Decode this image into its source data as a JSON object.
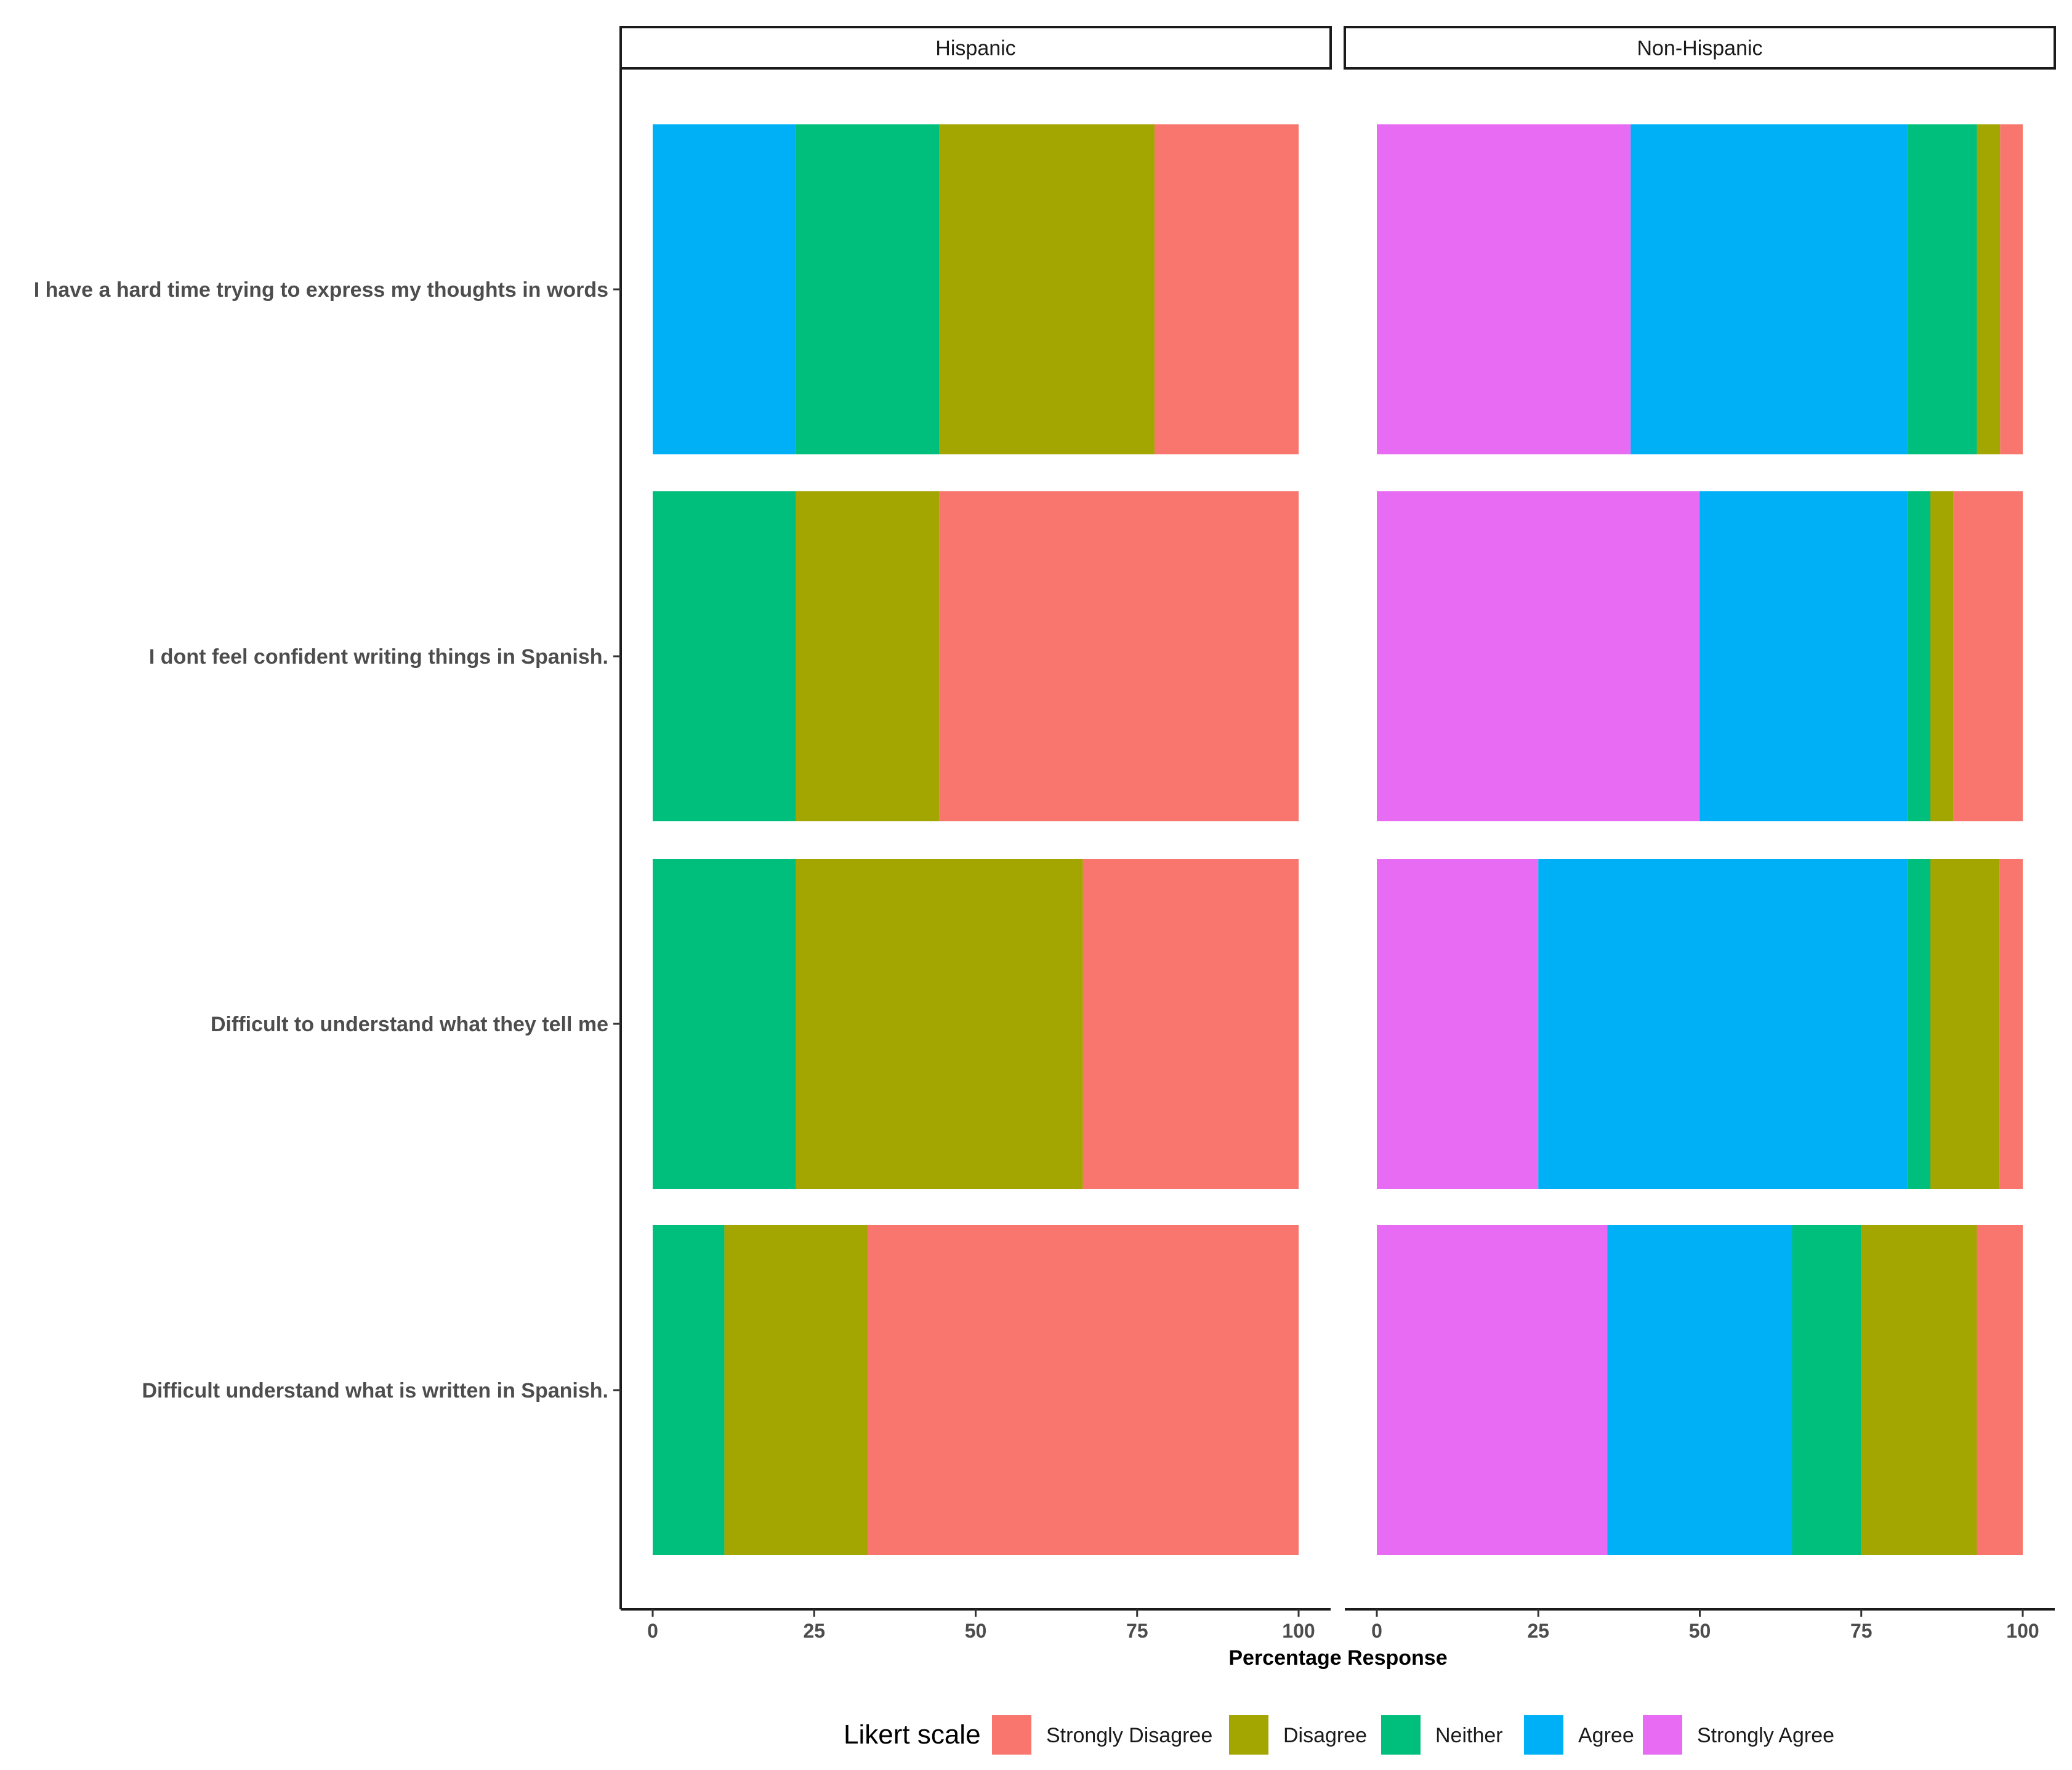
{
  "chart_data": {
    "type": "bar",
    "orientation": "horizontal",
    "stacked": true,
    "xlabel": "Percentage Response",
    "xlim": [
      0,
      100
    ],
    "xticks": [
      0,
      25,
      50,
      75,
      100
    ],
    "grid": false,
    "legend_position": "bottom",
    "legend_title": "Likert scale",
    "categories": [
      "I have a hard time trying to express my thoughts in words",
      "I dont feel confident writing things in Spanish.",
      "Difficult to understand what they tell me",
      "Difficult  understand what is written in Spanish."
    ],
    "series_order": [
      "Strongly Agree",
      "Agree",
      "Neither",
      "Disagree",
      "Strongly Disagree"
    ],
    "legend_order": [
      "Strongly Disagree",
      "Disagree",
      "Neither",
      "Agree",
      "Strongly Agree"
    ],
    "colors": {
      "Strongly Disagree": "#F8766D",
      "Disagree": "#A3A500",
      "Neither": "#00BF7D",
      "Agree": "#00B0F6",
      "Strongly Agree": "#E76BF3"
    },
    "panels": [
      {
        "name": "Hispanic",
        "series": [
          {
            "name": "Strongly Agree",
            "values": [
              0,
              0,
              0,
              0
            ]
          },
          {
            "name": "Agree",
            "values": [
              22.2,
              0,
              0,
              0
            ]
          },
          {
            "name": "Neither",
            "values": [
              22.2,
              22.2,
              22.2,
              11.1
            ]
          },
          {
            "name": "Disagree",
            "values": [
              33.3,
              22.2,
              44.4,
              22.2
            ]
          },
          {
            "name": "Strongly Disagree",
            "values": [
              22.3,
              55.6,
              33.4,
              66.7
            ]
          }
        ]
      },
      {
        "name": "Non-Hispanic",
        "series": [
          {
            "name": "Strongly Agree",
            "values": [
              39.3,
              50.0,
              25.0,
              35.7
            ]
          },
          {
            "name": "Agree",
            "values": [
              42.9,
              32.1,
              57.1,
              28.6
            ]
          },
          {
            "name": "Neither",
            "values": [
              10.7,
              3.6,
              3.6,
              10.7
            ]
          },
          {
            "name": "Disagree",
            "values": [
              3.6,
              3.6,
              10.7,
              17.9
            ]
          },
          {
            "name": "Strongly Disagree",
            "values": [
              3.5,
              10.7,
              3.6,
              7.1
            ]
          }
        ]
      }
    ]
  }
}
